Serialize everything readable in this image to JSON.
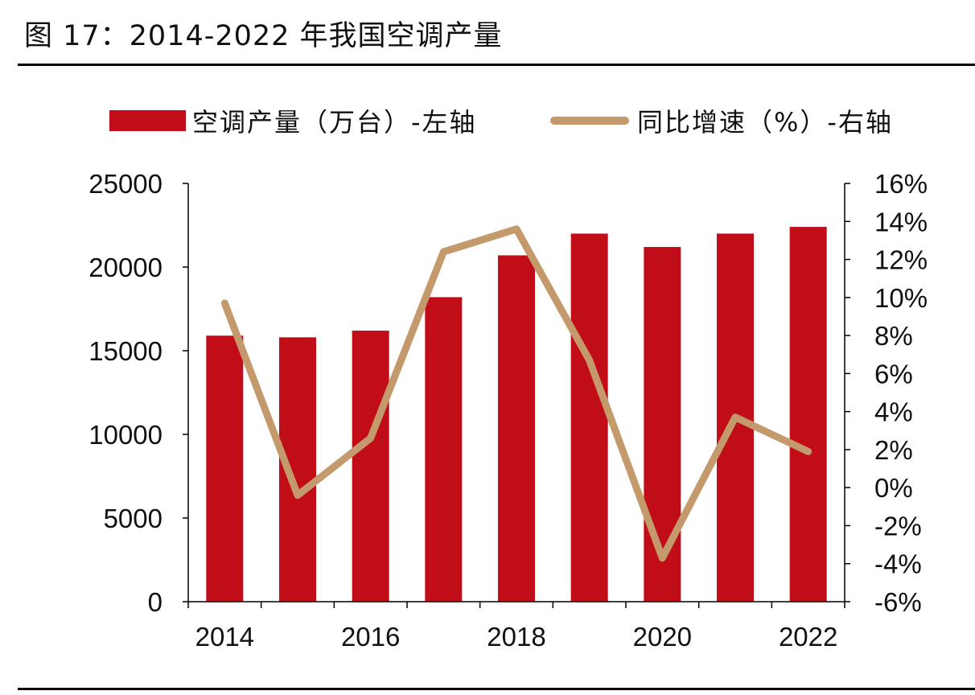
{
  "title": "图 17：2014-2022 年我国空调产量",
  "legend": {
    "bar_label": "空调产量（万台）-左轴",
    "line_label": "同比增速（%）-右轴"
  },
  "colors": {
    "bar": "#c00d18",
    "line": "#c49a6c",
    "axis": "#000000"
  },
  "chart_data": {
    "type": "bar",
    "title": "2014-2022 年我国空调产量",
    "categories": [
      "2014",
      "2015",
      "2016",
      "2017",
      "2018",
      "2019",
      "2020",
      "2021",
      "2022"
    ],
    "x_tick_labels": [
      "2014",
      "",
      "2016",
      "",
      "2018",
      "",
      "2020",
      "",
      "2022"
    ],
    "series": [
      {
        "name": "空调产量（万台）",
        "type": "bar",
        "axis": "left",
        "values": [
          15900,
          15800,
          16200,
          18200,
          20700,
          22000,
          21200,
          22000,
          22400
        ]
      },
      {
        "name": "同比增速（%）",
        "type": "line",
        "axis": "right",
        "values": [
          9.7,
          -0.4,
          2.6,
          12.4,
          13.6,
          6.7,
          -3.7,
          3.7,
          1.9
        ]
      }
    ],
    "left_axis": {
      "ylim": [
        0,
        25000
      ],
      "ticks": [
        "0",
        "5000",
        "10000",
        "15000",
        "20000",
        "25000"
      ]
    },
    "right_axis": {
      "ylim": [
        -6,
        16
      ],
      "ticks": [
        "-6%",
        "-4%",
        "-2%",
        "0%",
        "2%",
        "4%",
        "6%",
        "8%",
        "10%",
        "12%",
        "14%",
        "16%"
      ]
    },
    "legend_position": "top"
  }
}
